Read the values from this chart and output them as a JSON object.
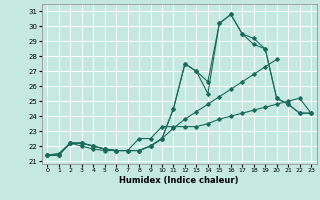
{
  "xlabel": "Humidex (Indice chaleur)",
  "bg_color": "#c5e8e0",
  "grid_color": "#aed4cc",
  "line_color": "#1a6b5a",
  "xlim": [
    -0.5,
    23.5
  ],
  "ylim_min": 20.8,
  "ylim_max": 31.5,
  "xticks": [
    0,
    1,
    2,
    3,
    4,
    5,
    6,
    7,
    8,
    9,
    10,
    11,
    12,
    13,
    14,
    15,
    16,
    17,
    18,
    19,
    20,
    21,
    22,
    23
  ],
  "yticks": [
    21,
    22,
    23,
    24,
    25,
    26,
    27,
    28,
    29,
    30,
    31
  ],
  "series": [
    [
      21.4,
      21.4,
      22.2,
      22.2,
      22.0,
      21.8,
      21.7,
      21.7,
      21.7,
      22.0,
      22.5,
      23.2,
      23.8,
      24.3,
      24.8,
      25.3,
      25.8,
      26.3,
      26.8,
      27.3,
      27.8,
      null,
      null,
      null
    ],
    [
      21.4,
      21.4,
      22.2,
      22.2,
      22.0,
      21.8,
      21.7,
      21.7,
      21.7,
      22.0,
      22.5,
      24.5,
      27.5,
      27.0,
      25.5,
      30.2,
      30.8,
      29.5,
      28.8,
      28.5,
      25.2,
      24.8,
      24.2,
      24.2
    ],
    [
      21.4,
      21.4,
      22.2,
      22.2,
      22.0,
      21.8,
      21.7,
      21.7,
      21.7,
      22.0,
      22.5,
      24.5,
      27.5,
      27.0,
      26.3,
      30.2,
      30.8,
      29.5,
      29.2,
      28.5,
      25.2,
      24.8,
      24.2,
      24.2
    ],
    [
      21.4,
      21.5,
      22.2,
      22.0,
      21.8,
      21.7,
      21.7,
      21.7,
      22.5,
      22.5,
      23.3,
      23.3,
      23.3,
      23.3,
      23.5,
      23.8,
      24.0,
      24.2,
      24.4,
      24.6,
      24.8,
      25.0,
      25.2,
      24.2
    ]
  ]
}
